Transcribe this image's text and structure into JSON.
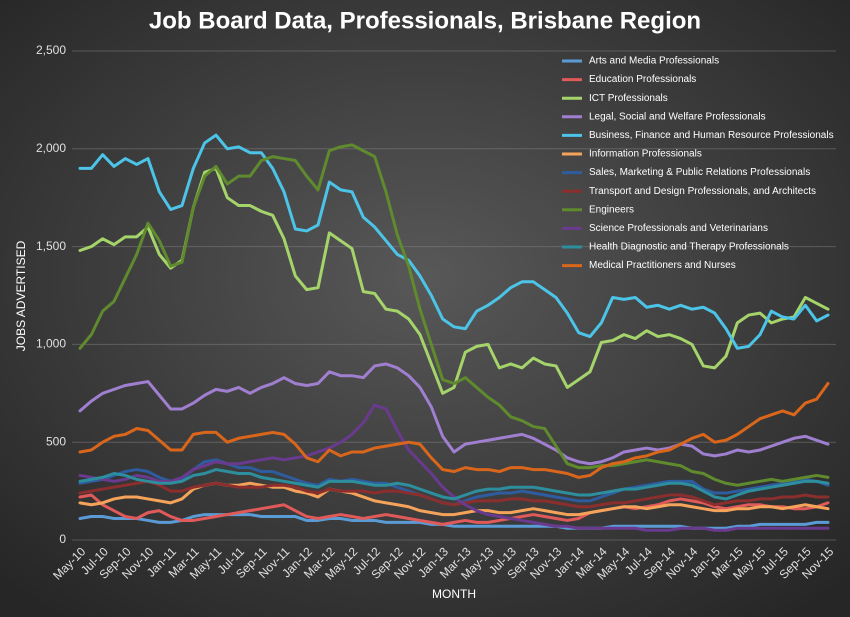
{
  "chart_data": {
    "type": "line",
    "title": "Job Board Data, Professionals, Brisbane Region",
    "x_label": "MONTH",
    "y_label": "JOBS ADVERTISED",
    "grid": true,
    "legend": "top-right",
    "ylim": [
      0,
      2500
    ],
    "yticks": [
      0,
      500,
      {
        "value": 1000,
        "label": "1,000"
      },
      {
        "value": 1500,
        "label": "1,500"
      },
      {
        "value": 2000,
        "label": "2,000"
      },
      {
        "value": 2500,
        "label": "2,500"
      }
    ],
    "categories": [
      "May-10",
      null,
      "Jul-10",
      null,
      "Sep-10",
      null,
      "Nov-10",
      null,
      "Jan-11",
      null,
      "Mar-11",
      null,
      "May-11",
      null,
      "Jul-11",
      null,
      "Sep-11",
      null,
      "Nov-11",
      null,
      "Jan-12",
      null,
      "Mar-12",
      null,
      "May-12",
      null,
      "Jul-12",
      null,
      "Sep-12",
      null,
      "Nov-12",
      null,
      "Jan-13",
      null,
      "Mar-13",
      null,
      "May-13",
      null,
      "Jul-13",
      null,
      "Sep-13",
      null,
      "Nov-13",
      null,
      "Jan-14",
      null,
      "Mar-14",
      null,
      "May-14",
      null,
      "Jul-14",
      null,
      "Sep-14",
      null,
      "Nov-14",
      null,
      "Jan-15",
      null,
      "Mar-15",
      null,
      "May-15",
      null,
      "Jul-15",
      null,
      "Sep-15",
      null,
      "Nov-15"
    ],
    "series": [
      {
        "name": "Arts and Media Professionals",
        "color": "#5b9bd5",
        "values": [
          110,
          120,
          120,
          110,
          110,
          110,
          100,
          90,
          90,
          100,
          120,
          130,
          130,
          130,
          130,
          130,
          120,
          120,
          120,
          120,
          100,
          100,
          110,
          110,
          100,
          100,
          100,
          90,
          90,
          90,
          90,
          80,
          80,
          70,
          70,
          70,
          70,
          70,
          70,
          70,
          70,
          70,
          70,
          60,
          60,
          60,
          60,
          70,
          70,
          70,
          70,
          70,
          70,
          70,
          60,
          60,
          60,
          60,
          70,
          70,
          80,
          80,
          80,
          80,
          80,
          90,
          90
        ]
      },
      {
        "name": "Education Professionals",
        "color": "#e05a5a",
        "values": [
          220,
          230,
          180,
          150,
          120,
          110,
          140,
          150,
          120,
          100,
          100,
          110,
          120,
          130,
          140,
          150,
          160,
          170,
          180,
          150,
          120,
          110,
          120,
          130,
          120,
          110,
          120,
          130,
          120,
          110,
          100,
          90,
          80,
          90,
          100,
          90,
          90,
          100,
          110,
          120,
          130,
          120,
          110,
          100,
          110,
          140,
          150,
          160,
          170,
          160,
          170,
          180,
          200,
          210,
          200,
          190,
          170,
          160,
          170,
          180,
          180,
          170,
          170,
          160,
          160,
          170,
          190
        ]
      },
      {
        "name": "ICT Professionals",
        "color": "#a5d46a",
        "values": [
          1480,
          1500,
          1540,
          1510,
          1550,
          1550,
          1600,
          1460,
          1390,
          1430,
          1700,
          1880,
          1900,
          1750,
          1710,
          1710,
          1680,
          1660,
          1540,
          1350,
          1280,
          1290,
          1570,
          1530,
          1490,
          1270,
          1260,
          1180,
          1170,
          1130,
          1050,
          900,
          750,
          780,
          960,
          990,
          1000,
          880,
          900,
          880,
          930,
          900,
          890,
          780,
          820,
          860,
          1010,
          1020,
          1050,
          1030,
          1070,
          1040,
          1050,
          1030,
          1000,
          890,
          880,
          940,
          1110,
          1150,
          1160,
          1110,
          1130,
          1140,
          1240,
          1210,
          1180
        ]
      },
      {
        "name": "Legal, Social and Welfare Professionals",
        "color": "#a07fd0",
        "values": [
          660,
          710,
          750,
          770,
          790,
          800,
          810,
          740,
          670,
          670,
          700,
          740,
          770,
          760,
          780,
          750,
          780,
          800,
          830,
          800,
          790,
          800,
          860,
          840,
          840,
          830,
          890,
          900,
          880,
          840,
          780,
          680,
          530,
          450,
          490,
          500,
          510,
          520,
          530,
          540,
          520,
          490,
          460,
          420,
          400,
          390,
          400,
          420,
          450,
          460,
          470,
          460,
          470,
          490,
          480,
          440,
          430,
          440,
          460,
          450,
          460,
          480,
          500,
          520,
          530,
          510,
          490
        ]
      },
      {
        "name": "Business, Finance and Human Resource Professionals",
        "color": "#4cc4e8",
        "values": [
          1900,
          1900,
          1970,
          1910,
          1950,
          1920,
          1950,
          1780,
          1690,
          1710,
          1900,
          2030,
          2070,
          2000,
          2010,
          1980,
          1980,
          1900,
          1780,
          1590,
          1580,
          1610,
          1830,
          1790,
          1780,
          1650,
          1600,
          1530,
          1460,
          1430,
          1350,
          1250,
          1130,
          1090,
          1080,
          1170,
          1200,
          1240,
          1290,
          1320,
          1320,
          1280,
          1240,
          1160,
          1060,
          1040,
          1110,
          1240,
          1230,
          1240,
          1190,
          1200,
          1180,
          1200,
          1180,
          1190,
          1160,
          1080,
          980,
          990,
          1050,
          1170,
          1140,
          1130,
          1200,
          1120,
          1150
        ]
      },
      {
        "name": "Information Professionals",
        "color": "#f5a35a",
        "values": [
          190,
          180,
          190,
          210,
          220,
          220,
          210,
          200,
          190,
          210,
          260,
          280,
          290,
          280,
          280,
          290,
          280,
          270,
          270,
          250,
          240,
          220,
          260,
          250,
          240,
          220,
          200,
          190,
          180,
          170,
          150,
          140,
          130,
          130,
          140,
          150,
          150,
          140,
          140,
          150,
          160,
          150,
          140,
          130,
          130,
          140,
          150,
          160,
          170,
          170,
          160,
          170,
          180,
          180,
          170,
          160,
          150,
          150,
          160,
          160,
          170,
          170,
          160,
          170,
          180,
          170,
          160
        ]
      },
      {
        "name": "Sales, Marketing & Public Relations Professionals",
        "color": "#2e5c9e",
        "values": [
          290,
          300,
          310,
          330,
          350,
          360,
          350,
          320,
          300,
          310,
          360,
          400,
          410,
          390,
          370,
          370,
          350,
          350,
          330,
          310,
          290,
          280,
          310,
          300,
          310,
          300,
          290,
          290,
          270,
          250,
          230,
          210,
          190,
          180,
          200,
          220,
          230,
          240,
          240,
          250,
          240,
          230,
          220,
          210,
          200,
          200,
          220,
          240,
          260,
          270,
          280,
          290,
          300,
          300,
          300,
          260,
          240,
          240,
          250,
          260,
          270,
          280,
          290,
          300,
          310,
          300,
          280
        ]
      },
      {
        "name": "Transport and Design Professionals, and Architects",
        "color": "#8b2e2e",
        "values": [
          240,
          250,
          260,
          270,
          280,
          290,
          300,
          280,
          250,
          250,
          270,
          280,
          290,
          280,
          270,
          270,
          270,
          280,
          280,
          270,
          250,
          240,
          260,
          250,
          250,
          250,
          240,
          250,
          250,
          240,
          230,
          210,
          190,
          180,
          190,
          200,
          200,
          200,
          210,
          210,
          200,
          200,
          190,
          180,
          170,
          170,
          180,
          190,
          190,
          200,
          210,
          220,
          230,
          230,
          220,
          200,
          180,
          190,
          200,
          200,
          210,
          210,
          220,
          220,
          230,
          220,
          220
        ]
      },
      {
        "name": "Engineers",
        "color": "#5f8a2e",
        "values": [
          980,
          1050,
          1170,
          1220,
          1340,
          1460,
          1620,
          1530,
          1400,
          1420,
          1700,
          1860,
          1910,
          1820,
          1860,
          1860,
          1940,
          1960,
          1950,
          1940,
          1860,
          1790,
          1990,
          2010,
          2020,
          1990,
          1960,
          1780,
          1560,
          1400,
          1180,
          1000,
          820,
          800,
          830,
          780,
          730,
          690,
          630,
          610,
          580,
          570,
          480,
          390,
          370,
          370,
          380,
          380,
          390,
          400,
          410,
          400,
          390,
          380,
          350,
          340,
          310,
          290,
          280,
          290,
          300,
          310,
          300,
          310,
          320,
          330,
          320
        ]
      },
      {
        "name": "Science Professionals and Veterinarians",
        "color": "#6a3a8e",
        "values": [
          330,
          320,
          310,
          300,
          310,
          330,
          320,
          300,
          300,
          320,
          360,
          380,
          400,
          390,
          390,
          400,
          410,
          420,
          410,
          420,
          430,
          450,
          470,
          500,
          540,
          600,
          690,
          670,
          560,
          460,
          400,
          340,
          270,
          220,
          180,
          150,
          130,
          120,
          110,
          100,
          90,
          80,
          70,
          70,
          60,
          60,
          60,
          60,
          60,
          60,
          50,
          50,
          50,
          60,
          60,
          60,
          50,
          50,
          60,
          60,
          60,
          60,
          60,
          60,
          60,
          60,
          60
        ]
      },
      {
        "name": "Health Diagnostic and Therapy Professionals",
        "color": "#2d8e9e",
        "values": [
          300,
          310,
          320,
          340,
          330,
          310,
          300,
          290,
          290,
          300,
          330,
          340,
          360,
          350,
          340,
          340,
          320,
          310,
          300,
          290,
          280,
          270,
          300,
          300,
          300,
          290,
          280,
          280,
          290,
          280,
          260,
          240,
          220,
          210,
          230,
          250,
          260,
          260,
          270,
          270,
          270,
          260,
          250,
          240,
          230,
          230,
          240,
          250,
          260,
          260,
          270,
          280,
          290,
          290,
          280,
          250,
          220,
          210,
          230,
          250,
          260,
          270,
          280,
          290,
          300,
          300,
          290
        ]
      },
      {
        "name": "Medical Practitioners and Nurses",
        "color": "#d9661a",
        "values": [
          450,
          460,
          500,
          530,
          540,
          570,
          560,
          510,
          460,
          460,
          540,
          550,
          550,
          500,
          520,
          530,
          540,
          550,
          540,
          490,
          420,
          400,
          460,
          430,
          450,
          450,
          470,
          480,
          490,
          500,
          490,
          420,
          360,
          350,
          370,
          360,
          360,
          350,
          370,
          370,
          360,
          360,
          350,
          340,
          320,
          330,
          370,
          390,
          400,
          420,
          430,
          450,
          460,
          490,
          520,
          540,
          500,
          510,
          540,
          580,
          620,
          640,
          660,
          640,
          700,
          720,
          800
        ]
      }
    ]
  }
}
